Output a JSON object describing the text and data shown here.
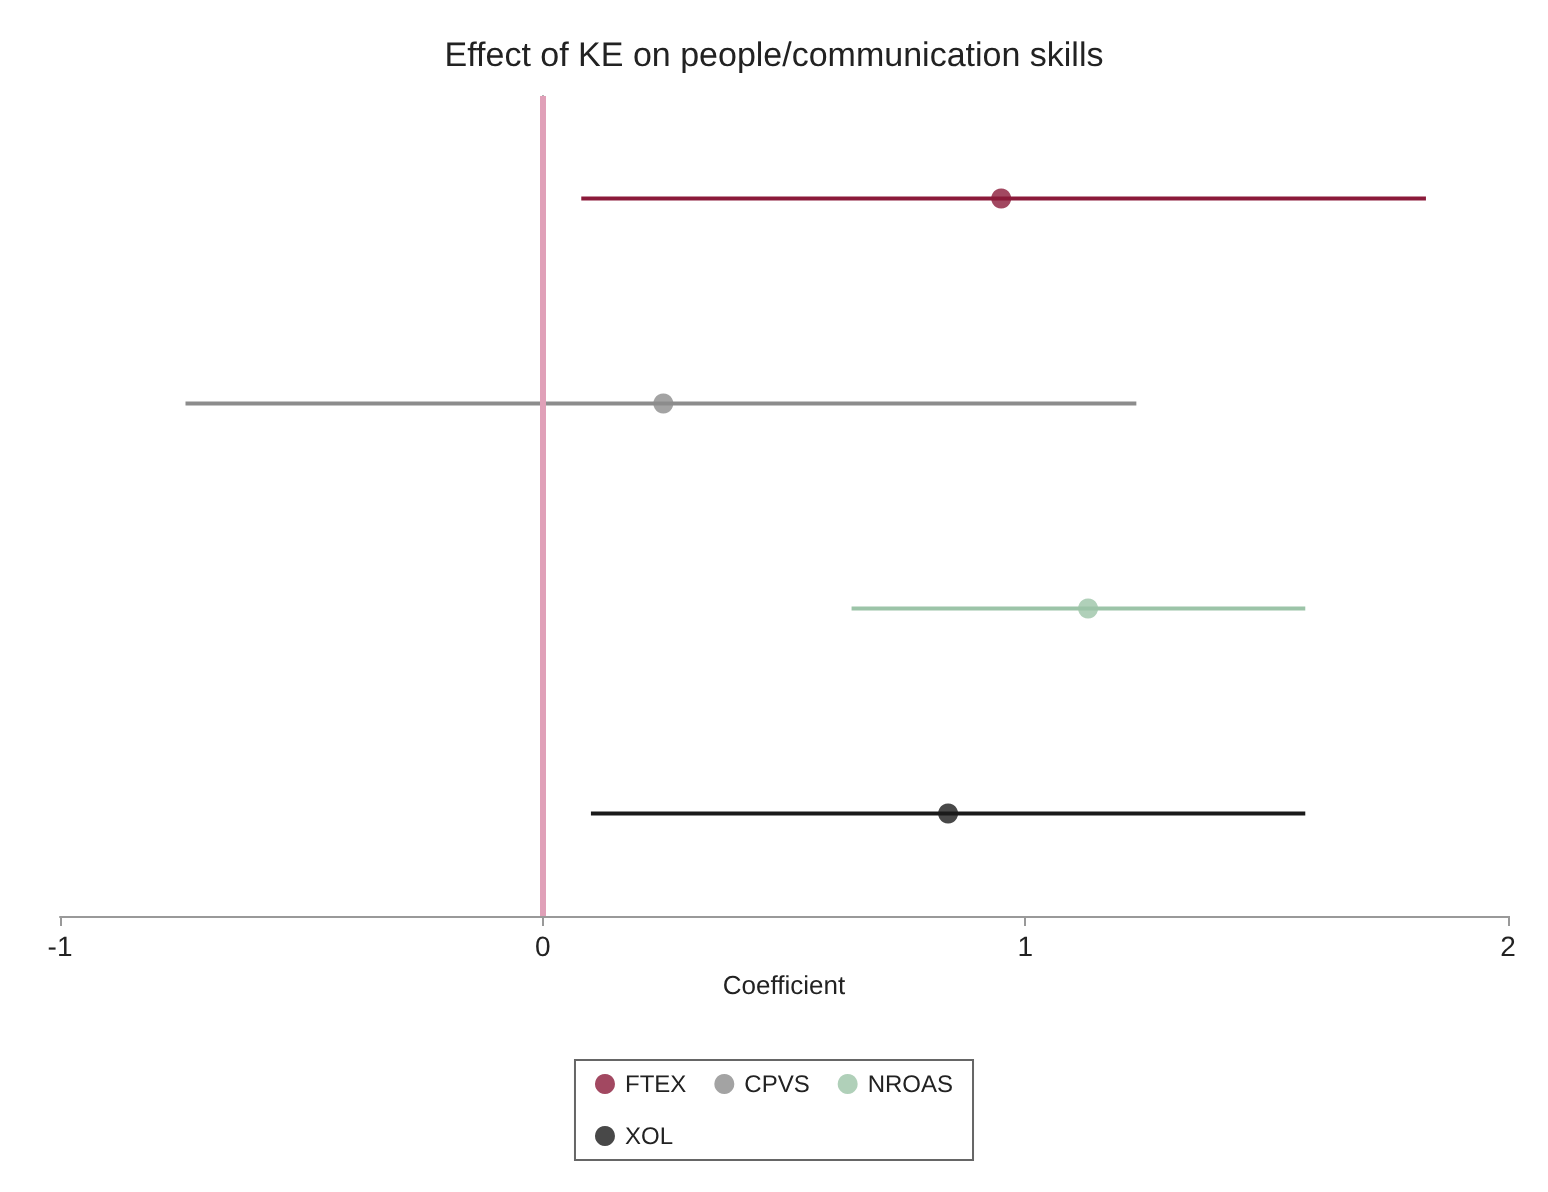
{
  "chart_data": {
    "type": "scatter",
    "orientation": "horizontal",
    "title": "Effect of KE on people/communication skills",
    "xlabel": "Coefficient",
    "categories": [
      null,
      null,
      null,
      null
    ],
    "series": [
      {
        "name": "FTEX",
        "color": "#8b1a3a",
        "values": [
          0.95,
          null,
          null,
          null
        ],
        "errors": [
          [
            0.08,
            1.83
          ],
          null,
          null,
          null
        ]
      },
      {
        "name": "CPVS",
        "color": "#8c8c8c",
        "values": [
          null,
          0.25,
          null,
          null
        ],
        "errors": [
          null,
          [
            -0.74,
            1.23
          ],
          null,
          null
        ]
      },
      {
        "name": "NROAS",
        "color": "#9cc4a8",
        "values": [
          null,
          null,
          1.13,
          null
        ],
        "errors": [
          null,
          null,
          [
            0.64,
            1.58
          ],
          null
        ]
      },
      {
        "name": "XOL",
        "color": "#1a1a1a",
        "values": [
          null,
          null,
          null,
          0.84
        ],
        "errors": [
          null,
          null,
          null,
          [
            0.1,
            1.58
          ]
        ]
      }
    ],
    "xlim": [
      -1,
      2
    ],
    "xticks": [
      -1,
      0,
      1,
      2
    ],
    "ref_lines": [
      {
        "axis": "x",
        "value": 0,
        "color": "#e0a0b8"
      }
    ],
    "legend": "bottom",
    "marker": "circle",
    "grid": false
  }
}
